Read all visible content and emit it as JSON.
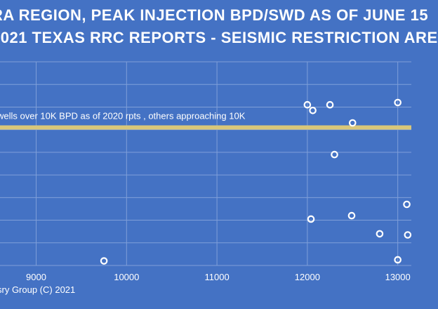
{
  "chart_data": {
    "type": "scatter",
    "title_lines": [
      "RA REGION, PEAK INJECTION BPD/SWD AS OF JUNE 15",
      "2021 TEXAS RRC REPORTS - SEISMIC RESTRICTION ARE"
    ],
    "x_ticks": [
      9000,
      10000,
      11000,
      12000,
      13000
    ],
    "xlim": [
      8600,
      13150
    ],
    "ylim": [
      0,
      9
    ],
    "grid": true,
    "reference_line": {
      "y": 6.1,
      "label": "wells over 10K BPD as of 2020 rpts , others approaching 10K",
      "color": "#d9c77a"
    },
    "points": [
      {
        "x": 9750,
        "y": 0.2
      },
      {
        "x": 12000,
        "y": 7.1
      },
      {
        "x": 12040,
        "y": 2.05
      },
      {
        "x": 12060,
        "y": 6.85
      },
      {
        "x": 12250,
        "y": 7.1
      },
      {
        "x": 12300,
        "y": 4.9
      },
      {
        "x": 12490,
        "y": 2.2
      },
      {
        "x": 12500,
        "y": 6.3
      },
      {
        "x": 12800,
        "y": 1.4
      },
      {
        "x": 13000,
        "y": 7.2
      },
      {
        "x": 13000,
        "y": 0.25
      },
      {
        "x": 13100,
        "y": 2.7
      },
      {
        "x": 13110,
        "y": 1.35
      }
    ],
    "point_color": "#ffffff"
  },
  "credit": "sry Group (C) 2021"
}
